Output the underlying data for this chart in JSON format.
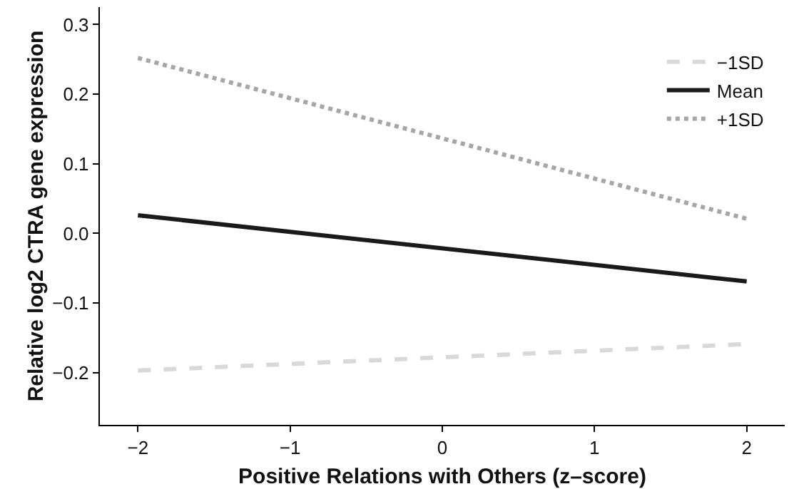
{
  "chart_data": {
    "type": "line",
    "xlabel": "Positive Relations with Others (z–score)",
    "ylabel": "Relative log2 CTRA gene expression",
    "x": [
      -2,
      2
    ],
    "series": [
      {
        "name": "−1SD",
        "color": "#d9d9d9",
        "line_style": "dashed",
        "values": [
          -0.197,
          -0.159
        ]
      },
      {
        "name": "Mean",
        "color": "#1a1a1a",
        "line_style": "solid",
        "values": [
          0.026,
          -0.069
        ]
      },
      {
        "name": "+1SD",
        "color": "#a6a6a6",
        "line_style": "dotted",
        "values": [
          0.252,
          0.021
        ]
      }
    ],
    "xlim": [
      -2.25,
      2.25
    ],
    "ylim": [
      -0.275,
      0.325
    ],
    "xticks": [
      {
        "value": -2,
        "label": "−2"
      },
      {
        "value": -1,
        "label": "−1"
      },
      0,
      1,
      2
    ],
    "yticks": [
      {
        "value": -0.2,
        "label": "−0.2"
      },
      {
        "value": -0.1,
        "label": "−0.1"
      },
      {
        "value": 0,
        "label": "0.0"
      },
      {
        "value": 0.1,
        "label": "0.1"
      },
      {
        "value": 0.2,
        "label": "0.2"
      },
      {
        "value": 0.3,
        "label": "0.3"
      }
    ],
    "grid": false,
    "legend": "top right",
    "marker": "none"
  }
}
